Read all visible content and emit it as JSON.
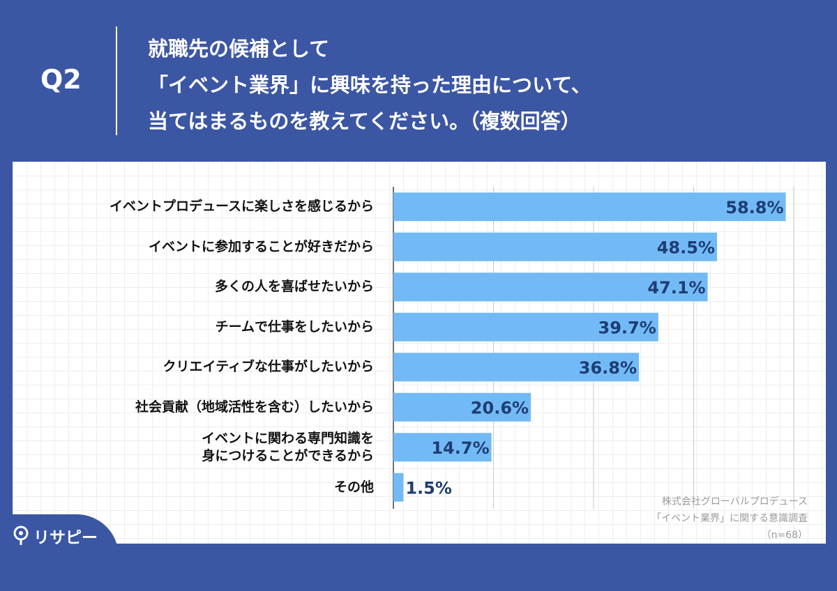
{
  "header": {
    "question_number": "Q2",
    "title_lines": [
      "就職先の候補として",
      "「イベント業界」に興味を持った理由について、",
      "当てはまるものを教えてください。（複数回答）"
    ]
  },
  "chart_data": {
    "type": "bar",
    "orientation": "horizontal",
    "categories": [
      "イベントプロデュースに楽しさを感じるから",
      "イベントに参加することが好きだから",
      "多くの人を喜ばせたいから",
      "チームで仕事をしたいから",
      "クリエイティブな仕事がしたいから",
      "社会貢献（地域活性を含む）したいから",
      "イベントに関わる専門知識を\n身につけることができるから",
      "その他"
    ],
    "values": [
      58.8,
      48.5,
      47.1,
      39.7,
      36.8,
      20.6,
      14.7,
      1.5
    ],
    "value_labels": [
      "58.8%",
      "48.5%",
      "47.1%",
      "39.7%",
      "36.8%",
      "20.6%",
      "14.7%",
      "1.5%"
    ],
    "xlim": [
      0,
      60
    ],
    "grid": true,
    "colors": {
      "bar": "#72baf6",
      "value_text": "#1f3d73",
      "background": "#3b56a3"
    }
  },
  "footnote": {
    "lines": [
      "株式会社グローバルプロデュース",
      "「イベント業界」に関する意識調査",
      "（n=68）"
    ]
  },
  "logo": {
    "text": "リサピー",
    "icon": "pin-icon"
  }
}
